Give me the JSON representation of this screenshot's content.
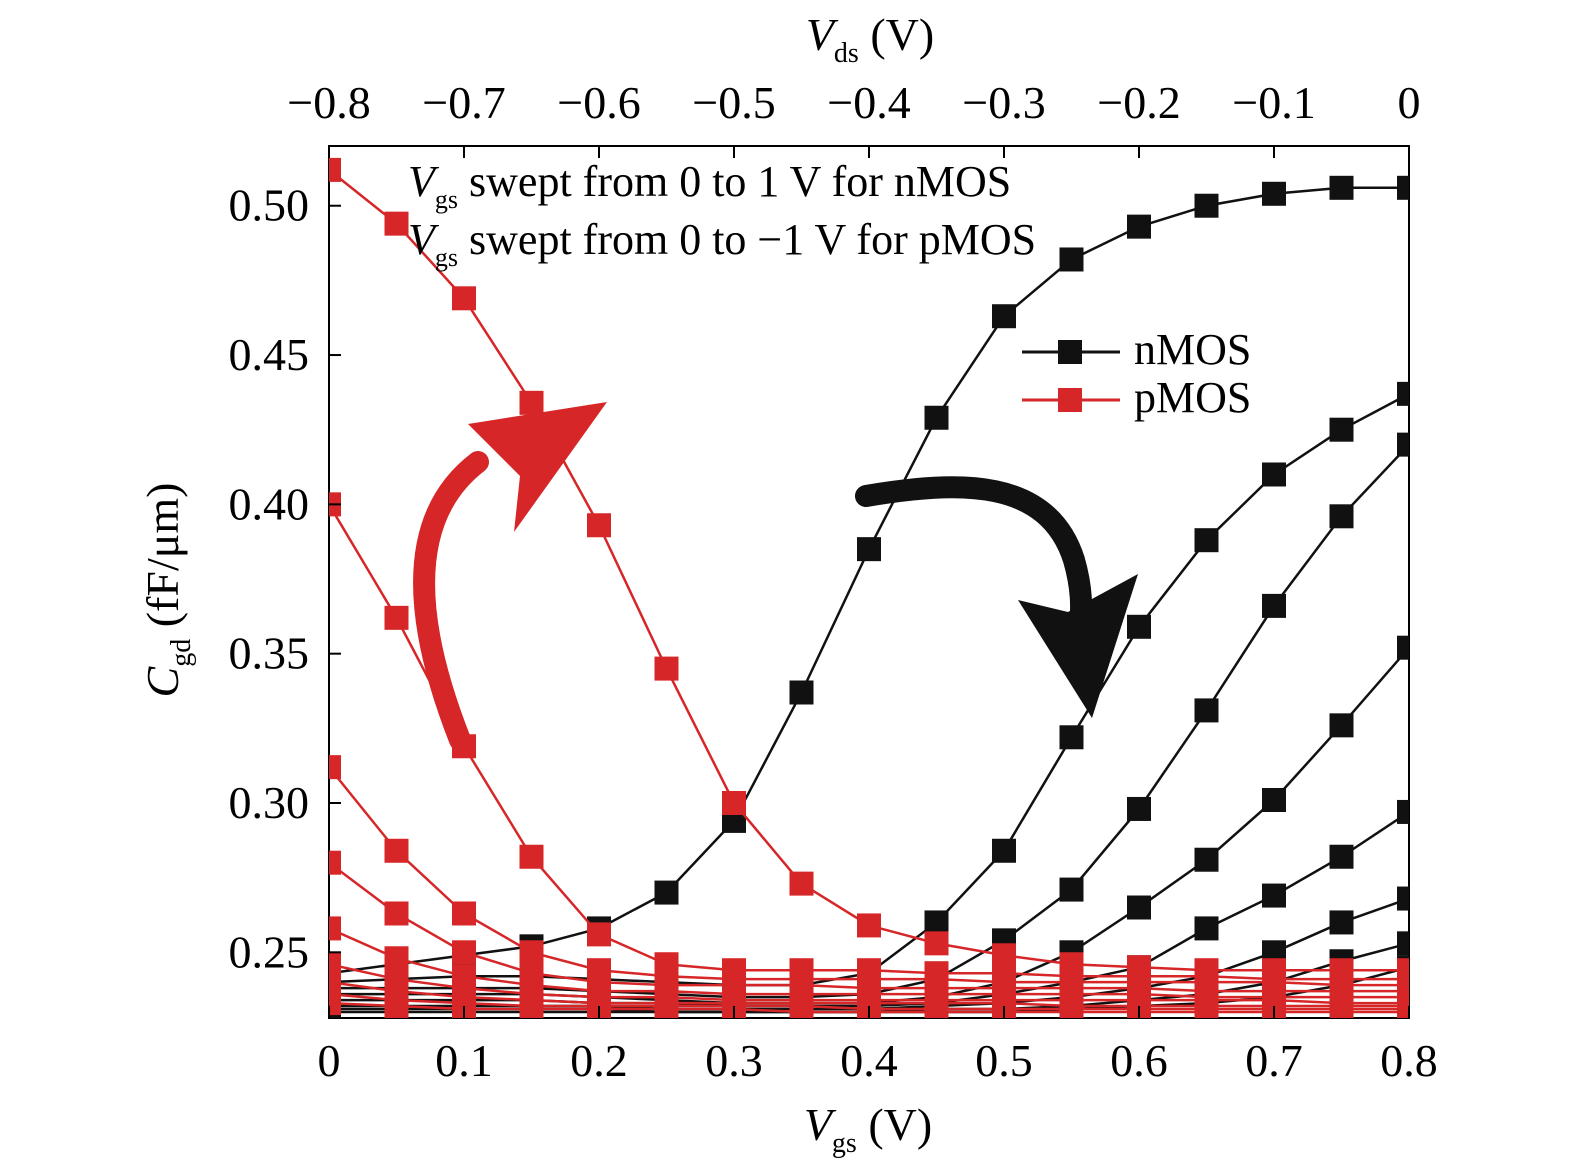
{
  "chart_data": {
    "type": "line",
    "top_axis": {
      "label_main": "V",
      "label_sub": "ds",
      "label_unit": " (V)",
      "range": [
        -0.8,
        0
      ],
      "ticks": [
        -0.8,
        -0.7,
        -0.6,
        -0.5,
        -0.4,
        -0.3,
        -0.2,
        -0.1,
        0
      ],
      "tick_labels": [
        "−0.8",
        "−0.7",
        "−0.6",
        "−0.5",
        "−0.4",
        "−0.3",
        "−0.2",
        "−0.1",
        "0"
      ]
    },
    "x_axis": {
      "label_main": "V",
      "label_sub": "gs",
      "label_unit": " (V)",
      "range": [
        0,
        0.8
      ],
      "ticks": [
        0,
        0.1,
        0.2,
        0.3,
        0.4,
        0.5,
        0.6,
        0.7,
        0.8
      ],
      "tick_labels": [
        "0",
        "0.1",
        "0.2",
        "0.3",
        "0.4",
        "0.5",
        "0.6",
        "0.7",
        "0.8"
      ]
    },
    "y_axis": {
      "label_main": "C",
      "label_sub": "gd",
      "label_unit": " (fF/μm)",
      "range": [
        0.228,
        0.52
      ],
      "ticks": [
        0.25,
        0.3,
        0.35,
        0.4,
        0.45,
        0.5
      ],
      "tick_labels": [
        "0.25",
        "0.30",
        "0.35",
        "0.40",
        "0.45",
        "0.50"
      ]
    },
    "annotations": [
      {
        "main": "V",
        "sub": "gs",
        "text": " swept from 0 to 1 V for nMOS"
      },
      {
        "main": "V",
        "sub": "gs",
        "text": " swept from 0 to −1 V for pMOS"
      }
    ],
    "legend": {
      "position": "top-right",
      "entries": [
        {
          "label": "nMOS",
          "color": "#111111"
        },
        {
          "label": "pMOS",
          "color": "#d62628"
        }
      ]
    },
    "arrows": [
      {
        "color": "#d62628",
        "meaning": "pMOS curves rise as Vgs sweeps"
      },
      {
        "color": "#111111",
        "meaning": "nMOS curves shift as Vgs sweeps"
      }
    ],
    "x": [
      0,
      0.05,
      0.1,
      0.15,
      0.2,
      0.25,
      0.3,
      0.35,
      0.4,
      0.45,
      0.5,
      0.55,
      0.6,
      0.65,
      0.7,
      0.75,
      0.8
    ],
    "series": [
      {
        "group": "nMOS",
        "color": "#111111",
        "values": [
          0.243,
          0.246,
          0.249,
          0.252,
          0.258,
          0.27,
          0.294,
          0.337,
          0.385,
          0.429,
          0.463,
          0.482,
          0.493,
          0.5,
          0.504,
          0.506,
          0.506
        ]
      },
      {
        "group": "nMOS",
        "color": "#111111",
        "values": [
          0.24,
          0.241,
          0.242,
          0.242,
          0.241,
          0.24,
          0.239,
          0.239,
          0.243,
          0.26,
          0.284,
          0.322,
          0.359,
          0.388,
          0.41,
          0.425,
          0.437
        ]
      },
      {
        "group": "nMOS",
        "color": "#111111",
        "values": [
          0.238,
          0.238,
          0.238,
          0.238,
          0.237,
          0.236,
          0.235,
          0.235,
          0.236,
          0.241,
          0.254,
          0.271,
          0.298,
          0.331,
          0.366,
          0.396,
          0.42
        ]
      },
      {
        "group": "nMOS",
        "color": "#111111",
        "values": [
          0.236,
          0.236,
          0.236,
          0.236,
          0.235,
          0.234,
          0.233,
          0.233,
          0.233,
          0.235,
          0.24,
          0.25,
          0.265,
          0.281,
          0.301,
          0.326,
          0.352
        ]
      },
      {
        "group": "nMOS",
        "color": "#111111",
        "values": [
          0.234,
          0.234,
          0.234,
          0.234,
          0.233,
          0.233,
          0.232,
          0.232,
          0.232,
          0.233,
          0.236,
          0.24,
          0.245,
          0.258,
          0.269,
          0.282,
          0.297
        ]
      },
      {
        "group": "nMOS",
        "color": "#111111",
        "values": [
          0.232,
          0.232,
          0.232,
          0.232,
          0.232,
          0.231,
          0.231,
          0.231,
          0.231,
          0.232,
          0.233,
          0.235,
          0.238,
          0.242,
          0.25,
          0.26,
          0.268
        ]
      },
      {
        "group": "nMOS",
        "color": "#111111",
        "values": [
          0.231,
          0.231,
          0.231,
          0.231,
          0.231,
          0.23,
          0.23,
          0.23,
          0.23,
          0.231,
          0.231,
          0.232,
          0.234,
          0.236,
          0.24,
          0.247,
          0.253
        ]
      },
      {
        "group": "nMOS",
        "color": "#111111",
        "values": [
          0.23,
          0.23,
          0.23,
          0.23,
          0.23,
          0.23,
          0.23,
          0.23,
          0.23,
          0.23,
          0.23,
          0.231,
          0.232,
          0.233,
          0.235,
          0.239,
          0.245
        ]
      },
      {
        "group": "pMOS",
        "color": "#d62628",
        "values": [
          0.512,
          0.494,
          0.469,
          0.434,
          0.393,
          0.345,
          0.3,
          0.273,
          0.259,
          0.253,
          0.249,
          0.246,
          0.245,
          0.244,
          0.244,
          0.244,
          0.244
        ]
      },
      {
        "group": "pMOS",
        "color": "#d62628",
        "values": [
          0.4,
          0.362,
          0.319,
          0.282,
          0.256,
          0.246,
          0.244,
          0.244,
          0.244,
          0.243,
          0.243,
          0.242,
          0.242,
          0.242,
          0.241,
          0.241,
          0.241
        ]
      },
      {
        "group": "pMOS",
        "color": "#d62628",
        "values": [
          0.312,
          0.284,
          0.263,
          0.25,
          0.244,
          0.242,
          0.241,
          0.241,
          0.241,
          0.241,
          0.24,
          0.24,
          0.24,
          0.24,
          0.24,
          0.239,
          0.239
        ]
      },
      {
        "group": "pMOS",
        "color": "#d62628",
        "values": [
          0.28,
          0.263,
          0.25,
          0.243,
          0.24,
          0.239,
          0.239,
          0.239,
          0.238,
          0.238,
          0.238,
          0.238,
          0.238,
          0.237,
          0.237,
          0.237,
          0.237
        ]
      },
      {
        "group": "pMOS",
        "color": "#d62628",
        "values": [
          0.258,
          0.248,
          0.242,
          0.239,
          0.237,
          0.237,
          0.236,
          0.236,
          0.236,
          0.236,
          0.236,
          0.236,
          0.236,
          0.235,
          0.235,
          0.235,
          0.235
        ]
      },
      {
        "group": "pMOS",
        "color": "#d62628",
        "values": [
          0.246,
          0.241,
          0.238,
          0.236,
          0.235,
          0.235,
          0.234,
          0.234,
          0.234,
          0.234,
          0.234,
          0.234,
          0.234,
          0.234,
          0.234,
          0.233,
          0.233
        ]
      },
      {
        "group": "pMOS",
        "color": "#d62628",
        "values": [
          0.24,
          0.237,
          0.235,
          0.234,
          0.233,
          0.233,
          0.233,
          0.233,
          0.233,
          0.233,
          0.233,
          0.232,
          0.232,
          0.232,
          0.232,
          0.232,
          0.232
        ]
      },
      {
        "group": "pMOS",
        "color": "#d62628",
        "values": [
          0.236,
          0.234,
          0.233,
          0.232,
          0.232,
          0.232,
          0.232,
          0.232,
          0.231,
          0.231,
          0.231,
          0.231,
          0.231,
          0.231,
          0.231,
          0.231,
          0.231
        ]
      },
      {
        "group": "pMOS",
        "color": "#d62628",
        "values": [
          0.233,
          0.232,
          0.231,
          0.231,
          0.231,
          0.231,
          0.231,
          0.23,
          0.23,
          0.23,
          0.23,
          0.23,
          0.23,
          0.23,
          0.23,
          0.23,
          0.23
        ]
      }
    ]
  }
}
